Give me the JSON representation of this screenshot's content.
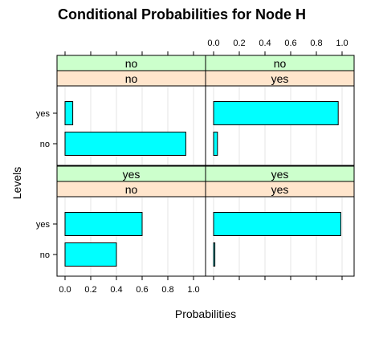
{
  "chart_data": {
    "type": "bar",
    "orientation": "horizontal",
    "title": "Conditional Probabilities for Node H",
    "xlabel": "Probabilities",
    "ylabel": "Levels",
    "xlim": [
      0,
      1
    ],
    "xticks": [
      "0.0",
      "0.2",
      "0.4",
      "0.6",
      "0.8",
      "1.0"
    ],
    "xtick_values": [
      0,
      0.2,
      0.4,
      0.6,
      0.8,
      1.0
    ],
    "categories": [
      "yes",
      "no"
    ],
    "grid": true,
    "bar_color": "#00ffff",
    "strip_colors": {
      "outer": "#ccffcc",
      "inner": "#ffe5cc"
    },
    "panels": [
      {
        "outer": "no",
        "inner": "no",
        "values": {
          "yes": 0.06,
          "no": 0.94
        }
      },
      {
        "outer": "no",
        "inner": "yes",
        "values": {
          "yes": 0.97,
          "no": 0.03
        }
      },
      {
        "outer": "yes",
        "inner": "no",
        "values": {
          "yes": 0.6,
          "no": 0.4
        }
      },
      {
        "outer": "yes",
        "inner": "yes",
        "values": {
          "yes": 0.99,
          "no": 0.01
        }
      }
    ]
  }
}
